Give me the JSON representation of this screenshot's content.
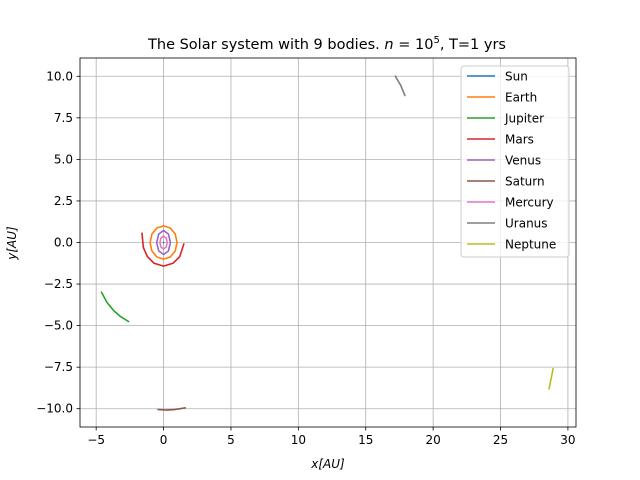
{
  "chart_data": {
    "type": "line",
    "title": "The Solar system with 9 bodies. n = 10^5, T=1 yrs",
    "title_parts": {
      "prefix": "The Solar system with 9 bodies. ",
      "n_var": "n",
      "eq": " = 10",
      "exp": "5",
      "suffix": ", T=1 yrs"
    },
    "xlabel": "x[AU]",
    "ylabel": "y[AU]",
    "xlim": [
      -6.2,
      30.6
    ],
    "ylim": [
      -11.1,
      11.1
    ],
    "xticks": [
      -5,
      0,
      5,
      10,
      15,
      20,
      25,
      30
    ],
    "yticks": [
      -10.0,
      -7.5,
      -5.0,
      -2.5,
      0.0,
      2.5,
      5.0,
      7.5,
      10.0
    ],
    "xtick_labels": [
      "−5",
      "0",
      "5",
      "10",
      "15",
      "20",
      "25",
      "30"
    ],
    "ytick_labels": [
      "−10.0",
      "−7.5",
      "−5.0",
      "−2.5",
      "0.0",
      "2.5",
      "5.0",
      "7.5",
      "10.0"
    ],
    "grid": true,
    "legend_position": "top-right",
    "series": [
      {
        "name": "Sun",
        "color": "#1f77b4",
        "x": [
          0.0,
          0.002
        ],
        "y": [
          0.0,
          0.001
        ]
      },
      {
        "name": "Earth",
        "color": "#ff7f0e",
        "x": [
          0.0,
          0.5,
          0.87,
          1.0,
          0.87,
          0.5,
          0.0,
          -0.5,
          -0.87,
          -1.0,
          -0.87,
          -0.5,
          0.0
        ],
        "y": [
          1.0,
          0.87,
          0.5,
          0.0,
          -0.5,
          -0.87,
          -1.0,
          -0.87,
          -0.5,
          0.0,
          0.5,
          0.87,
          1.0
        ]
      },
      {
        "name": "Jupiter",
        "color": "#2ca02c",
        "x": [
          -4.6,
          -4.2,
          -3.7,
          -3.2,
          -2.6
        ],
        "y": [
          -3.0,
          -3.6,
          -4.1,
          -4.45,
          -4.75
        ]
      },
      {
        "name": "Mars",
        "color": "#d62728",
        "x": [
          -1.6,
          -1.5,
          -1.2,
          -0.7,
          0.0,
          0.7,
          1.2,
          1.5
        ],
        "y": [
          0.55,
          -0.3,
          -0.85,
          -1.25,
          -1.42,
          -1.25,
          -0.85,
          -0.1
        ]
      },
      {
        "name": "Venus",
        "color": "#9467bd",
        "x": [
          0.0,
          0.36,
          0.51,
          0.36,
          0.0,
          -0.36,
          -0.51,
          -0.36,
          0.0
        ],
        "y": [
          0.72,
          0.51,
          0.0,
          -0.51,
          -0.72,
          -0.51,
          0.0,
          0.51,
          0.72
        ]
      },
      {
        "name": "Saturn",
        "color": "#8c564b",
        "x": [
          -0.4,
          0.2,
          0.8,
          1.6
        ],
        "y": [
          -10.05,
          -10.08,
          -10.05,
          -9.95
        ]
      },
      {
        "name": "Mercury",
        "color": "#e377c2",
        "x": [
          0.0,
          0.19,
          0.27,
          0.19,
          0.0,
          -0.19,
          -0.27,
          -0.19,
          0.0
        ],
        "y": [
          0.39,
          0.28,
          0.0,
          -0.28,
          -0.39,
          -0.28,
          0.0,
          0.28,
          0.39
        ]
      },
      {
        "name": "Uranus",
        "color": "#7f7f7f",
        "x": [
          17.2,
          17.6,
          17.9
        ],
        "y": [
          10.0,
          9.45,
          8.85
        ]
      },
      {
        "name": "Neptune",
        "color": "#bcbd22",
        "x": [
          28.6,
          28.75,
          28.9
        ],
        "y": [
          -8.8,
          -8.2,
          -7.6
        ]
      }
    ]
  }
}
